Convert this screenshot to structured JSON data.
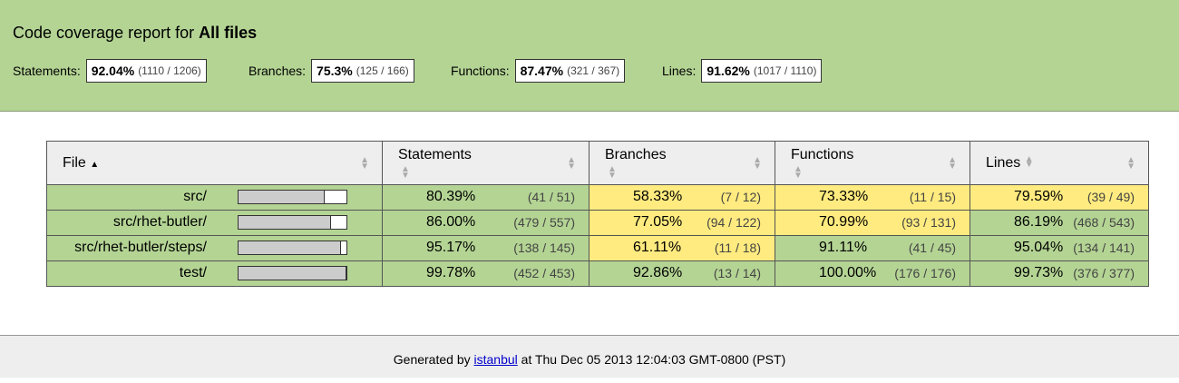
{
  "header": {
    "title_prefix": "Code coverage report for",
    "title_bold": "All files",
    "metrics": [
      {
        "label": "Statements:",
        "pct": "92.04%",
        "frac": "(1110 / 1206)"
      },
      {
        "label": "Branches:",
        "pct": "75.3%",
        "frac": "(125 / 166)"
      },
      {
        "label": "Functions:",
        "pct": "87.47%",
        "frac": "(321 / 367)"
      },
      {
        "label": "Lines:",
        "pct": "91.62%",
        "frac": "(1017 / 1110)"
      }
    ]
  },
  "table": {
    "headers": {
      "file": "File",
      "statements": "Statements",
      "branches": "Branches",
      "functions": "Functions",
      "lines": "Lines"
    },
    "rows": [
      {
        "file": "src/",
        "bar": 0.8,
        "statements": {
          "pct": "80.39%",
          "frac": "(41 / 51)",
          "level": "green"
        },
        "branches": {
          "pct": "58.33%",
          "frac": "(7 / 12)",
          "level": "yellow"
        },
        "functions": {
          "pct": "73.33%",
          "frac": "(11 / 15)",
          "level": "yellow"
        },
        "lines": {
          "pct": "79.59%",
          "frac": "(39 / 49)",
          "level": "yellow"
        }
      },
      {
        "file": "src/rhet-butler/",
        "bar": 0.86,
        "statements": {
          "pct": "86.00%",
          "frac": "(479 / 557)",
          "level": "green"
        },
        "branches": {
          "pct": "77.05%",
          "frac": "(94 / 122)",
          "level": "yellow"
        },
        "functions": {
          "pct": "70.99%",
          "frac": "(93 / 131)",
          "level": "yellow"
        },
        "lines": {
          "pct": "86.19%",
          "frac": "(468 / 543)",
          "level": "green"
        }
      },
      {
        "file": "src/rhet-butler/steps/",
        "bar": 0.95,
        "statements": {
          "pct": "95.17%",
          "frac": "(138 / 145)",
          "level": "green"
        },
        "branches": {
          "pct": "61.11%",
          "frac": "(11 / 18)",
          "level": "yellow"
        },
        "functions": {
          "pct": "91.11%",
          "frac": "(41 / 45)",
          "level": "green"
        },
        "lines": {
          "pct": "95.04%",
          "frac": "(134 / 141)",
          "level": "green"
        }
      },
      {
        "file": "test/",
        "bar": 0.9978,
        "statements": {
          "pct": "99.78%",
          "frac": "(452 / 453)",
          "level": "green"
        },
        "branches": {
          "pct": "92.86%",
          "frac": "(13 / 14)",
          "level": "green"
        },
        "functions": {
          "pct": "100.00%",
          "frac": "(176 / 176)",
          "level": "green"
        },
        "lines": {
          "pct": "99.73%",
          "frac": "(376 / 377)",
          "level": "green"
        }
      }
    ]
  },
  "footer": {
    "prefix": "Generated by",
    "link": "istanbul",
    "suffix": "at Thu Dec 05 2013 12:04:03 GMT-0800 (PST)"
  },
  "colors": {
    "high": "#b4d494",
    "medium": "#ffeb7f"
  }
}
